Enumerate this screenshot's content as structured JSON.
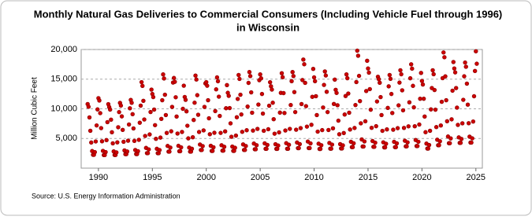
{
  "chart_data": {
    "type": "scatter",
    "title": [
      "Monthly Natural Gas Deliveries to Commercial Consumers (Including Vehicle Fuel through 1996)",
      "in Wisconsin"
    ],
    "y_label": "Million Cubic Feet",
    "source": "Source: U.S. Energy Information Administration",
    "color": "#cc0000",
    "grid": true,
    "xlim": [
      1988.4,
      2025.6
    ],
    "xticks": [
      1990,
      1995,
      2000,
      2005,
      2010,
      2015,
      2020,
      2025
    ],
    "ylim": [
      0,
      20000
    ],
    "yticks": [
      {
        "value": 5000,
        "label": "5,000"
      },
      {
        "value": 10000,
        "label": "10,000"
      },
      {
        "value": 15000,
        "label": "15,000"
      },
      {
        "value": 20000,
        "label": "20,000"
      }
    ],
    "x": [
      1989,
      1989.083,
      1989.167,
      1989.25,
      1989.333,
      1989.417,
      1989.5,
      1989.583,
      1989.667,
      1989.75,
      1989.833,
      1989.917,
      1990,
      1990.083,
      1990.167,
      1990.25,
      1990.333,
      1990.417,
      1990.5,
      1990.583,
      1990.667,
      1990.75,
      1990.833,
      1990.917,
      1991,
      1991.083,
      1991.167,
      1991.25,
      1991.333,
      1991.417,
      1991.5,
      1991.583,
      1991.667,
      1991.75,
      1991.833,
      1991.917,
      1992,
      1992.083,
      1992.167,
      1992.25,
      1992.333,
      1992.417,
      1992.5,
      1992.583,
      1992.667,
      1992.75,
      1992.833,
      1992.917,
      1993,
      1993.083,
      1993.167,
      1993.25,
      1993.333,
      1993.417,
      1993.5,
      1993.583,
      1993.667,
      1993.75,
      1993.833,
      1993.917,
      1994,
      1994.083,
      1994.167,
      1994.25,
      1994.333,
      1994.417,
      1994.5,
      1994.583,
      1994.667,
      1994.75,
      1994.833,
      1994.917,
      1995,
      1995.083,
      1995.167,
      1995.25,
      1995.333,
      1995.417,
      1995.5,
      1995.583,
      1995.667,
      1995.75,
      1995.833,
      1995.917,
      1996,
      1996.083,
      1996.167,
      1996.25,
      1996.333,
      1996.417,
      1996.5,
      1996.583,
      1996.667,
      1996.75,
      1996.833,
      1996.917,
      1997,
      1997.083,
      1997.167,
      1997.25,
      1997.333,
      1997.417,
      1997.5,
      1997.583,
      1997.667,
      1997.75,
      1997.833,
      1997.917,
      1998,
      1998.083,
      1998.167,
      1998.25,
      1998.333,
      1998.417,
      1998.5,
      1998.583,
      1998.667,
      1998.75,
      1998.833,
      1998.917,
      1999,
      1999.083,
      1999.167,
      1999.25,
      1999.333,
      1999.417,
      1999.5,
      1999.583,
      1999.667,
      1999.75,
      1999.833,
      1999.917,
      2000,
      2000.083,
      2000.167,
      2000.25,
      2000.333,
      2000.417,
      2000.5,
      2000.583,
      2000.667,
      2000.75,
      2000.833,
      2000.917,
      2001,
      2001.083,
      2001.167,
      2001.25,
      2001.333,
      2001.417,
      2001.5,
      2001.583,
      2001.667,
      2001.75,
      2001.833,
      2001.917,
      2002,
      2002.083,
      2002.167,
      2002.25,
      2002.333,
      2002.417,
      2002.5,
      2002.583,
      2002.667,
      2002.75,
      2002.833,
      2002.917,
      2003,
      2003.083,
      2003.167,
      2003.25,
      2003.333,
      2003.417,
      2003.5,
      2003.583,
      2003.667,
      2003.75,
      2003.833,
      2003.917,
      2004,
      2004.083,
      2004.167,
      2004.25,
      2004.333,
      2004.417,
      2004.5,
      2004.583,
      2004.667,
      2004.75,
      2004.833,
      2004.917,
      2005,
      2005.083,
      2005.167,
      2005.25,
      2005.333,
      2005.417,
      2005.5,
      2005.583,
      2005.667,
      2005.75,
      2005.833,
      2005.917,
      2006,
      2006.083,
      2006.167,
      2006.25,
      2006.333,
      2006.417,
      2006.5,
      2006.583,
      2006.667,
      2006.75,
      2006.833,
      2006.917,
      2007,
      2007.083,
      2007.167,
      2007.25,
      2007.333,
      2007.417,
      2007.5,
      2007.583,
      2007.667,
      2007.75,
      2007.833,
      2007.917,
      2008,
      2008.083,
      2008.167,
      2008.25,
      2008.333,
      2008.417,
      2008.5,
      2008.583,
      2008.667,
      2008.75,
      2008.833,
      2008.917,
      2009,
      2009.083,
      2009.167,
      2009.25,
      2009.333,
      2009.417,
      2009.5,
      2009.583,
      2009.667,
      2009.75,
      2009.833,
      2009.917,
      2010,
      2010.083,
      2010.167,
      2010.25,
      2010.333,
      2010.417,
      2010.5,
      2010.583,
      2010.667,
      2010.75,
      2010.833,
      2010.917,
      2011,
      2011.083,
      2011.167,
      2011.25,
      2011.333,
      2011.417,
      2011.5,
      2011.583,
      2011.667,
      2011.75,
      2011.833,
      2011.917,
      2012,
      2012.083,
      2012.167,
      2012.25,
      2012.333,
      2012.417,
      2012.5,
      2012.583,
      2012.667,
      2012.75,
      2012.833,
      2012.917,
      2013,
      2013.083,
      2013.167,
      2013.25,
      2013.333,
      2013.417,
      2013.5,
      2013.583,
      2013.667,
      2013.75,
      2013.833,
      2013.917,
      2014,
      2014.083,
      2014.167,
      2014.25,
      2014.333,
      2014.417,
      2014.5,
      2014.583,
      2014.667,
      2014.75,
      2014.833,
      2014.917,
      2015,
      2015.083,
      2015.167,
      2015.25,
      2015.333,
      2015.417,
      2015.5,
      2015.583,
      2015.667,
      2015.75,
      2015.833,
      2015.917,
      2016,
      2016.083,
      2016.167,
      2016.25,
      2016.333,
      2016.417,
      2016.5,
      2016.583,
      2016.667,
      2016.75,
      2016.833,
      2016.917,
      2017,
      2017.083,
      2017.167,
      2017.25,
      2017.333,
      2017.417,
      2017.5,
      2017.583,
      2017.667,
      2017.75,
      2017.833,
      2017.917,
      2018,
      2018.083,
      2018.167,
      2018.25,
      2018.333,
      2018.417,
      2018.5,
      2018.583,
      2018.667,
      2018.75,
      2018.833,
      2018.917,
      2019,
      2019.083,
      2019.167,
      2019.25,
      2019.333,
      2019.417,
      2019.5,
      2019.583,
      2019.667,
      2019.75,
      2019.833,
      2019.917,
      2020,
      2020.083,
      2020.167,
      2020.25,
      2020.333,
      2020.417,
      2020.5,
      2020.583,
      2020.667,
      2020.75,
      2020.833,
      2020.917,
      2021,
      2021.083,
      2021.167,
      2021.25,
      2021.333,
      2021.417,
      2021.5,
      2021.583,
      2021.667,
      2021.75,
      2021.833,
      2021.917,
      2022,
      2022.083,
      2022.167,
      2022.25,
      2022.333,
      2022.417,
      2022.5,
      2022.583,
      2022.667,
      2022.75,
      2022.833,
      2022.917,
      2023,
      2023.083,
      2023.167,
      2023.25,
      2023.333,
      2023.417,
      2023.5,
      2023.583,
      2023.667,
      2023.75,
      2023.833,
      2023.917,
      2024,
      2024.083,
      2024.167,
      2024.25,
      2024.333,
      2024.417,
      2024.5,
      2024.583,
      2024.667,
      2024.75,
      2024.833,
      2024.917,
      2025,
      2025.083
    ],
    "values": [
      10800,
      10350,
      8550,
      6300,
      4320,
      2880,
      2250,
      2250,
      2700,
      4500,
      7200,
      9900,
      11800,
      11395,
      9275,
      6750,
      4528,
      2912,
      2205,
      2205,
      2710,
      4730,
      7760,
      10790,
      10300,
      9875,
      8175,
      6050,
      4180,
      2820,
      2225,
      2225,
      2650,
      4350,
      6900,
      9450,
      11000,
      10545,
      8725,
      6450,
      4448,
      2992,
      2355,
      2355,
      2810,
      4630,
      7360,
      10090,
      11500,
      11020,
      9100,
      6700,
      4588,
      3052,
      2380,
      2380,
      2860,
      4780,
      7660,
      10540,
      14500,
      13870,
      11350,
      8200,
      5428,
      3412,
      2530,
      2530,
      3160,
      5680,
      9460,
      13240,
      12500,
      11975,
      9875,
      7250,
      4940,
      3260,
      2525,
      2525,
      3050,
      5150,
      8300,
      11450,
      15800,
      15115,
      12375,
      8950,
      5936,
      3744,
      2785,
      2785,
      3470,
      6210,
      10320,
      14430,
      15200,
      14550,
      11950,
      8700,
      5840,
      3760,
      2850,
      2850,
      3500,
      6100,
      10000,
      13900,
      12000,
      11515,
      9575,
      7150,
      5016,
      3464,
      2785,
      2785,
      3270,
      5210,
      8120,
      11030,
      15600,
      14940,
      12300,
      9000,
      6096,
      3984,
      3060,
      3060,
      3720,
      6360,
      10320,
      14280,
      14500,
      13890,
      11450,
      8400,
      5716,
      3764,
      2910,
      2910,
      3520,
      5960,
      9620,
      13280,
      15300,
      14650,
      12050,
      8800,
      5940,
      3860,
      2950,
      2950,
      3600,
      6200,
      10100,
      14000,
      12700,
      12185,
      10125,
      7550,
      5284,
      3636,
      2915,
      2915,
      3430,
      5490,
      8580,
      11670,
      15700,
      15035,
      12375,
      9050,
      6124,
      3996,
      3065,
      3065,
      3730,
      6390,
      10380,
      14370,
      16200,
      15515,
      12775,
      9350,
      6336,
      4144,
      3185,
      3185,
      3870,
      6610,
      10720,
      14830,
      15800,
      15140,
      12500,
      9200,
      6296,
      4184,
      3260,
      3260,
      3920,
      6560,
      10520,
      14480,
      13800,
      13245,
      11025,
      8250,
      5808,
      4032,
      3255,
      3255,
      3810,
      6030,
      9360,
      12690,
      16000,
      15330,
      12650,
      9300,
      6352,
      4208,
      3270,
      3270,
      3940,
      6620,
      10640,
      14660,
      16200,
      15525,
      12825,
      9450,
      6480,
      4320,
      3375,
      3375,
      4050,
      6750,
      10800,
      14850,
      18300,
      17515,
      14375,
      10450,
      7000,
      4484,
      3385,
      3385,
      4170,
      7310,
      12020,
      16730,
      15300,
      14665,
      12125,
      8950,
      6156,
      4124,
      3235,
      3235,
      3870,
      6410,
      10220,
      14030,
      16300,
      15615,
      12875,
      9450,
      6436,
      4244,
      3285,
      3285,
      3970,
      6710,
      10820,
      14930,
      13200,
      12680,
      10600,
      8000,
      5712,
      4048,
      3320,
      3320,
      3840,
      5920,
      9040,
      12160,
      15800,
      15155,
      12575,
      9350,
      6512,
      4448,
      3545,
      3545,
      4190,
      6770,
      10640,
      14510,
      19800,
      18950,
      15550,
      11300,
      7560,
      4840,
      3650,
      3650,
      4500,
      7900,
      13000,
      18100,
      16800,
      16105,
      13325,
      9850,
      6792,
      4568,
      3595,
      3595,
      4290,
      7070,
      11240,
      15410,
      15000,
      14395,
      11975,
      8950,
      6288,
      4352,
      3505,
      3505,
      4110,
      6530,
      10160,
      13790,
      15700,
      15060,
      12500,
      9300,
      6484,
      4436,
      3540,
      3540,
      4180,
      6740,
      10580,
      14420,
      16500,
      15825,
      13125,
      9750,
      6780,
      4620,
      3675,
      3675,
      4350,
      7050,
      11100,
      15150,
      17500,
      16775,
      13875,
      10250,
      7060,
      4740,
      3725,
      3725,
      4450,
      7350,
      11700,
      16050,
      14700,
      14100,
      11700,
      8700,
      6060,
      4140,
      3300,
      3300,
      3900,
      6300,
      9900,
      13500,
      16500,
      15835,
      13175,
      9850,
      6924,
      4796,
      3865,
      3865,
      4530,
      7190,
      11180,
      15170,
      19500,
      18695,
      15475,
      11450,
      7908,
      5332,
      4205,
      4205,
      5010,
      8230,
      13060,
      17890,
      16800,
      16140,
      13500,
      10200,
      7296,
      5184,
      4260,
      4260,
      4920,
      7560,
      11520,
      15480,
      17800,
      17090,
      14250,
      10700,
      7576,
      5304,
      4310,
      4310,
      5020,
      7860,
      12120,
      16380,
      19700,
      17600
    ]
  }
}
